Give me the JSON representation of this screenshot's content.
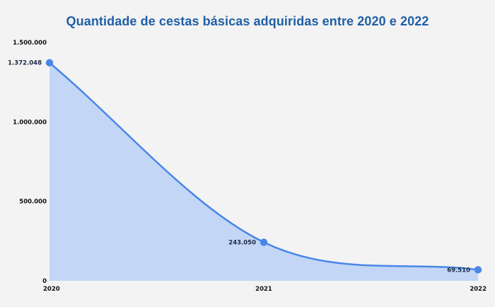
{
  "chart_data": {
    "type": "area",
    "title": "Quantidade de cestas básicas adquiridas entre 2020 e 2022",
    "xlabel": "",
    "ylabel": "",
    "categories": [
      "2020",
      "2021",
      "2022"
    ],
    "values": [
      1372048,
      243050,
      69510
    ],
    "value_labels": [
      "1.372.048",
      "243.050",
      "69.510"
    ],
    "ylim": [
      0,
      1500000
    ],
    "y_ticks": [
      {
        "value": 0,
        "label": "0"
      },
      {
        "value": 500000,
        "label": "500.000"
      },
      {
        "value": 1000000,
        "label": "1.000.000"
      },
      {
        "value": 1500000,
        "label": "1.500.000"
      }
    ],
    "grid": false,
    "legend": "none",
    "colors": {
      "line": "#4a86e8",
      "fill": "#c0d4f5",
      "title": "#1f5fa6",
      "background": "#f3f3f3"
    }
  }
}
